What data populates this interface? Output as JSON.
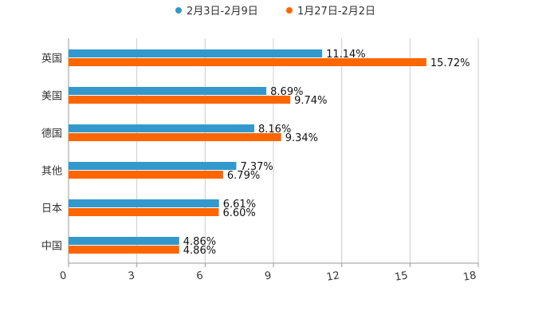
{
  "chart_data": {
    "type": "bar",
    "orientation": "horizontal",
    "categories": [
      "英国",
      "美国",
      "德国",
      "其他",
      "日本",
      "中国"
    ],
    "series": [
      {
        "name": "2月3日-2月9日",
        "color": "#3399cc",
        "values": [
          11.14,
          8.69,
          8.16,
          7.37,
          6.61,
          4.86
        ],
        "labels": [
          "11.14%",
          "8.69%",
          "8.16%",
          "7.37%",
          "6.61%",
          "4.86%"
        ]
      },
      {
        "name": "1月27日-2月2日",
        "color": "#ff6600",
        "values": [
          15.72,
          9.74,
          9.34,
          6.79,
          6.6,
          4.86
        ],
        "labels": [
          "15.72%",
          "9.74%",
          "9.34%",
          "6.79%",
          "6.60%",
          "4.86%"
        ]
      }
    ],
    "xlim": [
      0,
      18
    ],
    "xticks": [
      "0",
      "3",
      "6",
      "9",
      "12",
      "15",
      "18"
    ],
    "grid": true,
    "legend_position": "top-center",
    "title": "",
    "xlabel": "",
    "ylabel": ""
  },
  "colors": {
    "grid": "#cccccc",
    "axis": "#999999",
    "text": "#333333"
  }
}
